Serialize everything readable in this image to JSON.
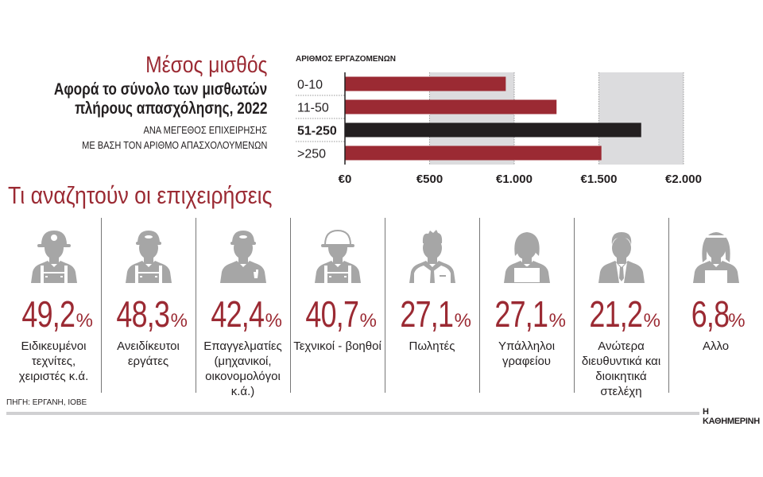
{
  "header": {
    "title": "Μέσος μισθός",
    "subtitle_line1": "Αφορά το σύνολο των μισθωτών",
    "subtitle_line2": "πλήρους απασχόλησης, 2022",
    "note_line1": "ΑΝΑ ΜΕΓΕΘΟΣ ΕΠΙΧΕΙΡΗΣΗΣ",
    "note_line2": "ΜΕ ΒΑΣΗ ΤΟΝ ΑΡΙΘΜΟ ΑΠΑΣΧΟΛΟΥΜΕΝΩΝ"
  },
  "chart_data": {
    "type": "bar",
    "orientation": "horizontal",
    "ylabel": "ΑΡΙΘΜΟΣ ΕΡΓΑΖΟΜΕΝΩΝ",
    "categories": [
      "0-10",
      "11-50",
      "51-250",
      ">250"
    ],
    "values": [
      950,
      1250,
      1750,
      1515
    ],
    "highlight": "51-250",
    "xlim": [
      0,
      2000
    ],
    "xticks": [
      0,
      500,
      1000,
      1500,
      2000
    ],
    "xtick_labels": [
      "€0",
      "€500",
      "€1.000",
      "€1.500",
      "€2.000"
    ],
    "colors": {
      "bar": "#9b2a33",
      "highlight": "#231f20",
      "band": "#dcdcde"
    }
  },
  "section2": {
    "title": "Τι αναζητούν οι επιχειρήσεις",
    "percent_symbol": "%",
    "items": [
      {
        "icon": "hardhat-worker-icon",
        "value": "49,2",
        "label": "Ειδικευμένοι τεχνίτες, χειριστές κ.ά."
      },
      {
        "icon": "cap-worker-icon",
        "value": "48,3",
        "label": "Ανειδίκευτοι εργάτες"
      },
      {
        "icon": "mechanic-icon",
        "value": "42,4",
        "label": "Επαγγελματίες (μηχανικοί, οικονομολόγοι κ.ά.)"
      },
      {
        "icon": "helmet-technician-icon",
        "value": "40,7",
        "label": "Τεχνικοί - βοηθοί"
      },
      {
        "icon": "salesman-icon",
        "value": "27,1",
        "label": "Πωλητές"
      },
      {
        "icon": "office-clerk-icon",
        "value": "27,1",
        "label": "Υπάλληλοι γραφείου"
      },
      {
        "icon": "manager-icon",
        "value": "21,2",
        "label": "Ανώτερα διευθυντικά και διοικητικά στελέχη"
      },
      {
        "icon": "maid-icon",
        "value": "6,8",
        "label": "Αλλο"
      }
    ]
  },
  "footer": {
    "source": "ΠΗΓΗ: ΕΡΓΑΝΗ, ΙΟΒΕ",
    "brand": "Η ΚΑΘΗΜΕΡΙΝΗ"
  },
  "colors": {
    "accent": "#9b2a33",
    "icon": "#a6a6a6"
  }
}
